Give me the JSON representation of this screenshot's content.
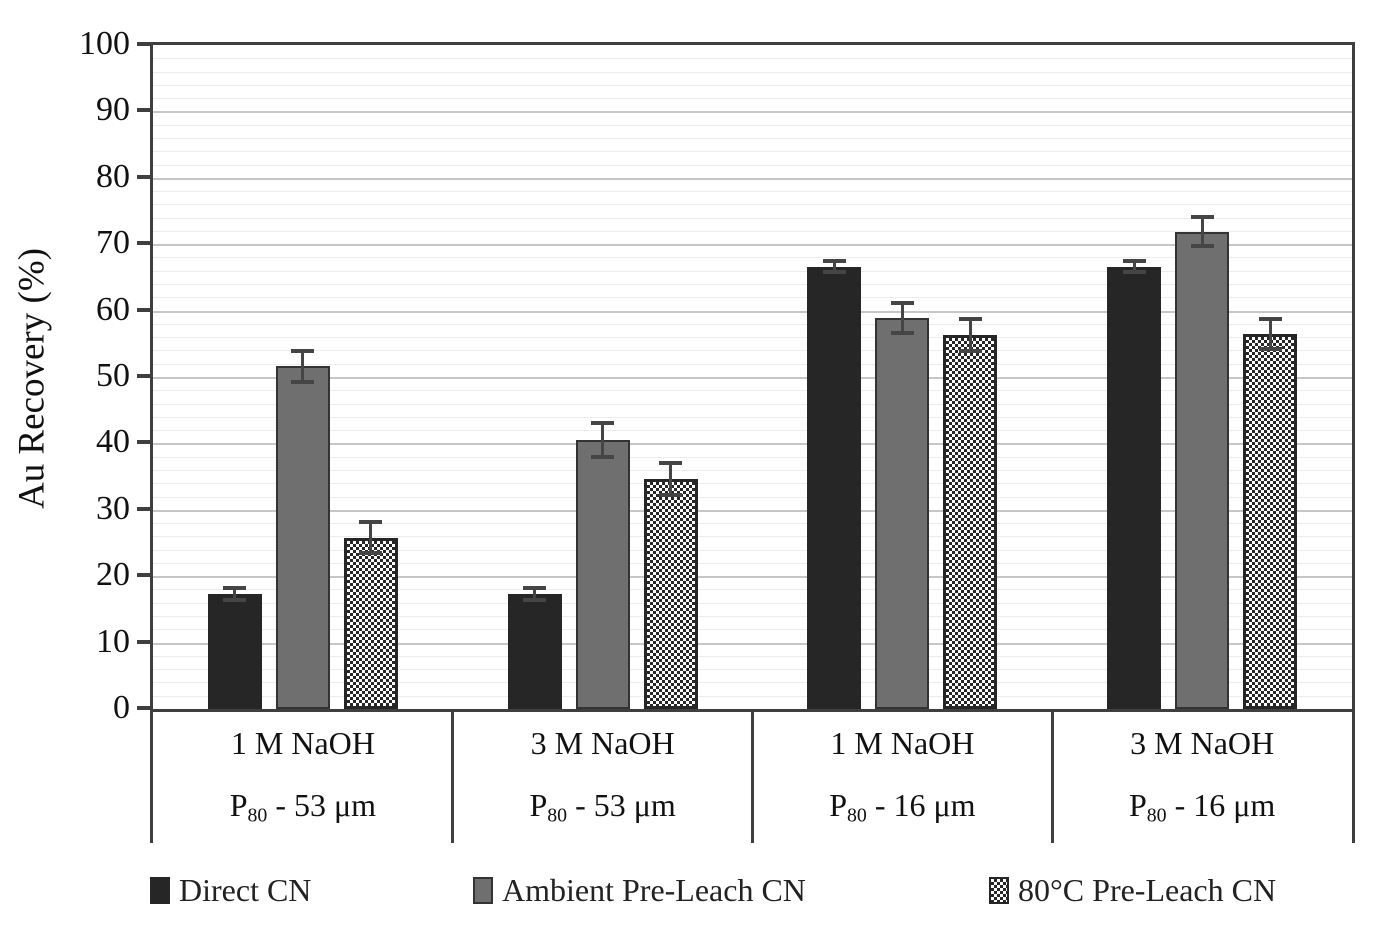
{
  "chart_data": {
    "type": "bar",
    "title": "",
    "xlabel": "",
    "ylabel": "Au Recovery (%)",
    "ylim": [
      0,
      100
    ],
    "y_major_tick": 10,
    "y_minor_tick": 2,
    "y_ticks": [
      0,
      10,
      20,
      30,
      40,
      50,
      60,
      70,
      80,
      90,
      100
    ],
    "grid": "horizontal major and minor gridlines",
    "legend_position": "bottom",
    "categories": [
      {
        "line1": "1 M NaOH",
        "line2_pre": "P",
        "line2_sub": "80",
        "line2_post": " - 53 μm"
      },
      {
        "line1": "3 M NaOH",
        "line2_pre": "P",
        "line2_sub": "80",
        "line2_post": " - 53 μm"
      },
      {
        "line1": "1 M NaOH",
        "line2_pre": "P",
        "line2_sub": "80",
        "line2_post": " - 16 μm"
      },
      {
        "line1": "3 M NaOH",
        "line2_pre": "P",
        "line2_sub": "80",
        "line2_post": " - 16 μm"
      }
    ],
    "series": [
      {
        "name": "Direct CN",
        "style": "solid-dark",
        "color": "#262626",
        "values": [
          17.3,
          17.3,
          66.6,
          66.6
        ],
        "errors": [
          0.9,
          0.9,
          0.8,
          0.8
        ]
      },
      {
        "name": "Ambient Pre-Leach CN",
        "style": "solid-gray",
        "color": "#6f6f6f",
        "values": [
          51.6,
          40.5,
          58.9,
          71.9
        ],
        "errors": [
          2.3,
          2.5,
          2.3,
          2.2
        ]
      },
      {
        "name": "80°C Pre-Leach CN",
        "style": "checker",
        "color": "#262626",
        "values": [
          25.8,
          34.6,
          56.3,
          56.5
        ],
        "errors": [
          2.3,
          2.4,
          2.4,
          2.3
        ]
      }
    ]
  },
  "colors": {
    "axis_frame": "#3f3f3f",
    "major_gridline": "#c6c6c6",
    "minor_gridline": "#ececec",
    "error_bar": "#454545",
    "background": "#ffffff"
  }
}
